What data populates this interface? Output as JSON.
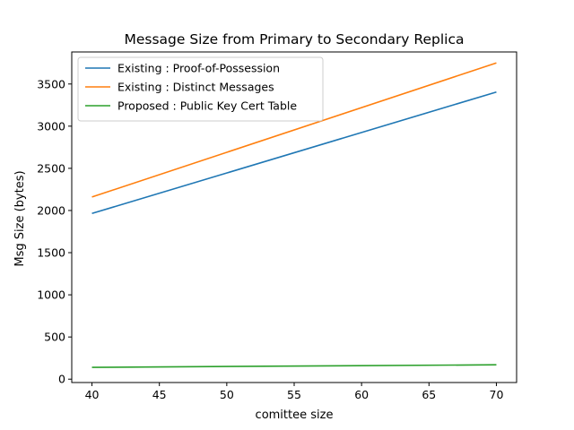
{
  "chart_data": {
    "type": "line",
    "title": "Message Size from Primary to Secondary Replica",
    "xlabel": "comittee size",
    "ylabel": "Msg Size (bytes)",
    "x": [
      40,
      70
    ],
    "xlim": [
      38.5,
      71.5
    ],
    "ylim": [
      -40,
      3880
    ],
    "xticks": [
      40,
      45,
      50,
      55,
      60,
      65,
      70
    ],
    "yticks": [
      0,
      500,
      1000,
      1500,
      2000,
      2500,
      3000,
      3500
    ],
    "grid": false,
    "legend_position": "upper-left",
    "series": [
      {
        "name": "Existing : Proof-of-Possession",
        "color": "#1f77b4",
        "values": [
          1965,
          3405
        ]
      },
      {
        "name": "Existing : Distinct Messages",
        "color": "#ff7f0e",
        "values": [
          2160,
          3750
        ]
      },
      {
        "name": "Proposed : Public Key Cert Table",
        "color": "#2ca02c",
        "values": [
          140,
          170
        ]
      }
    ]
  }
}
